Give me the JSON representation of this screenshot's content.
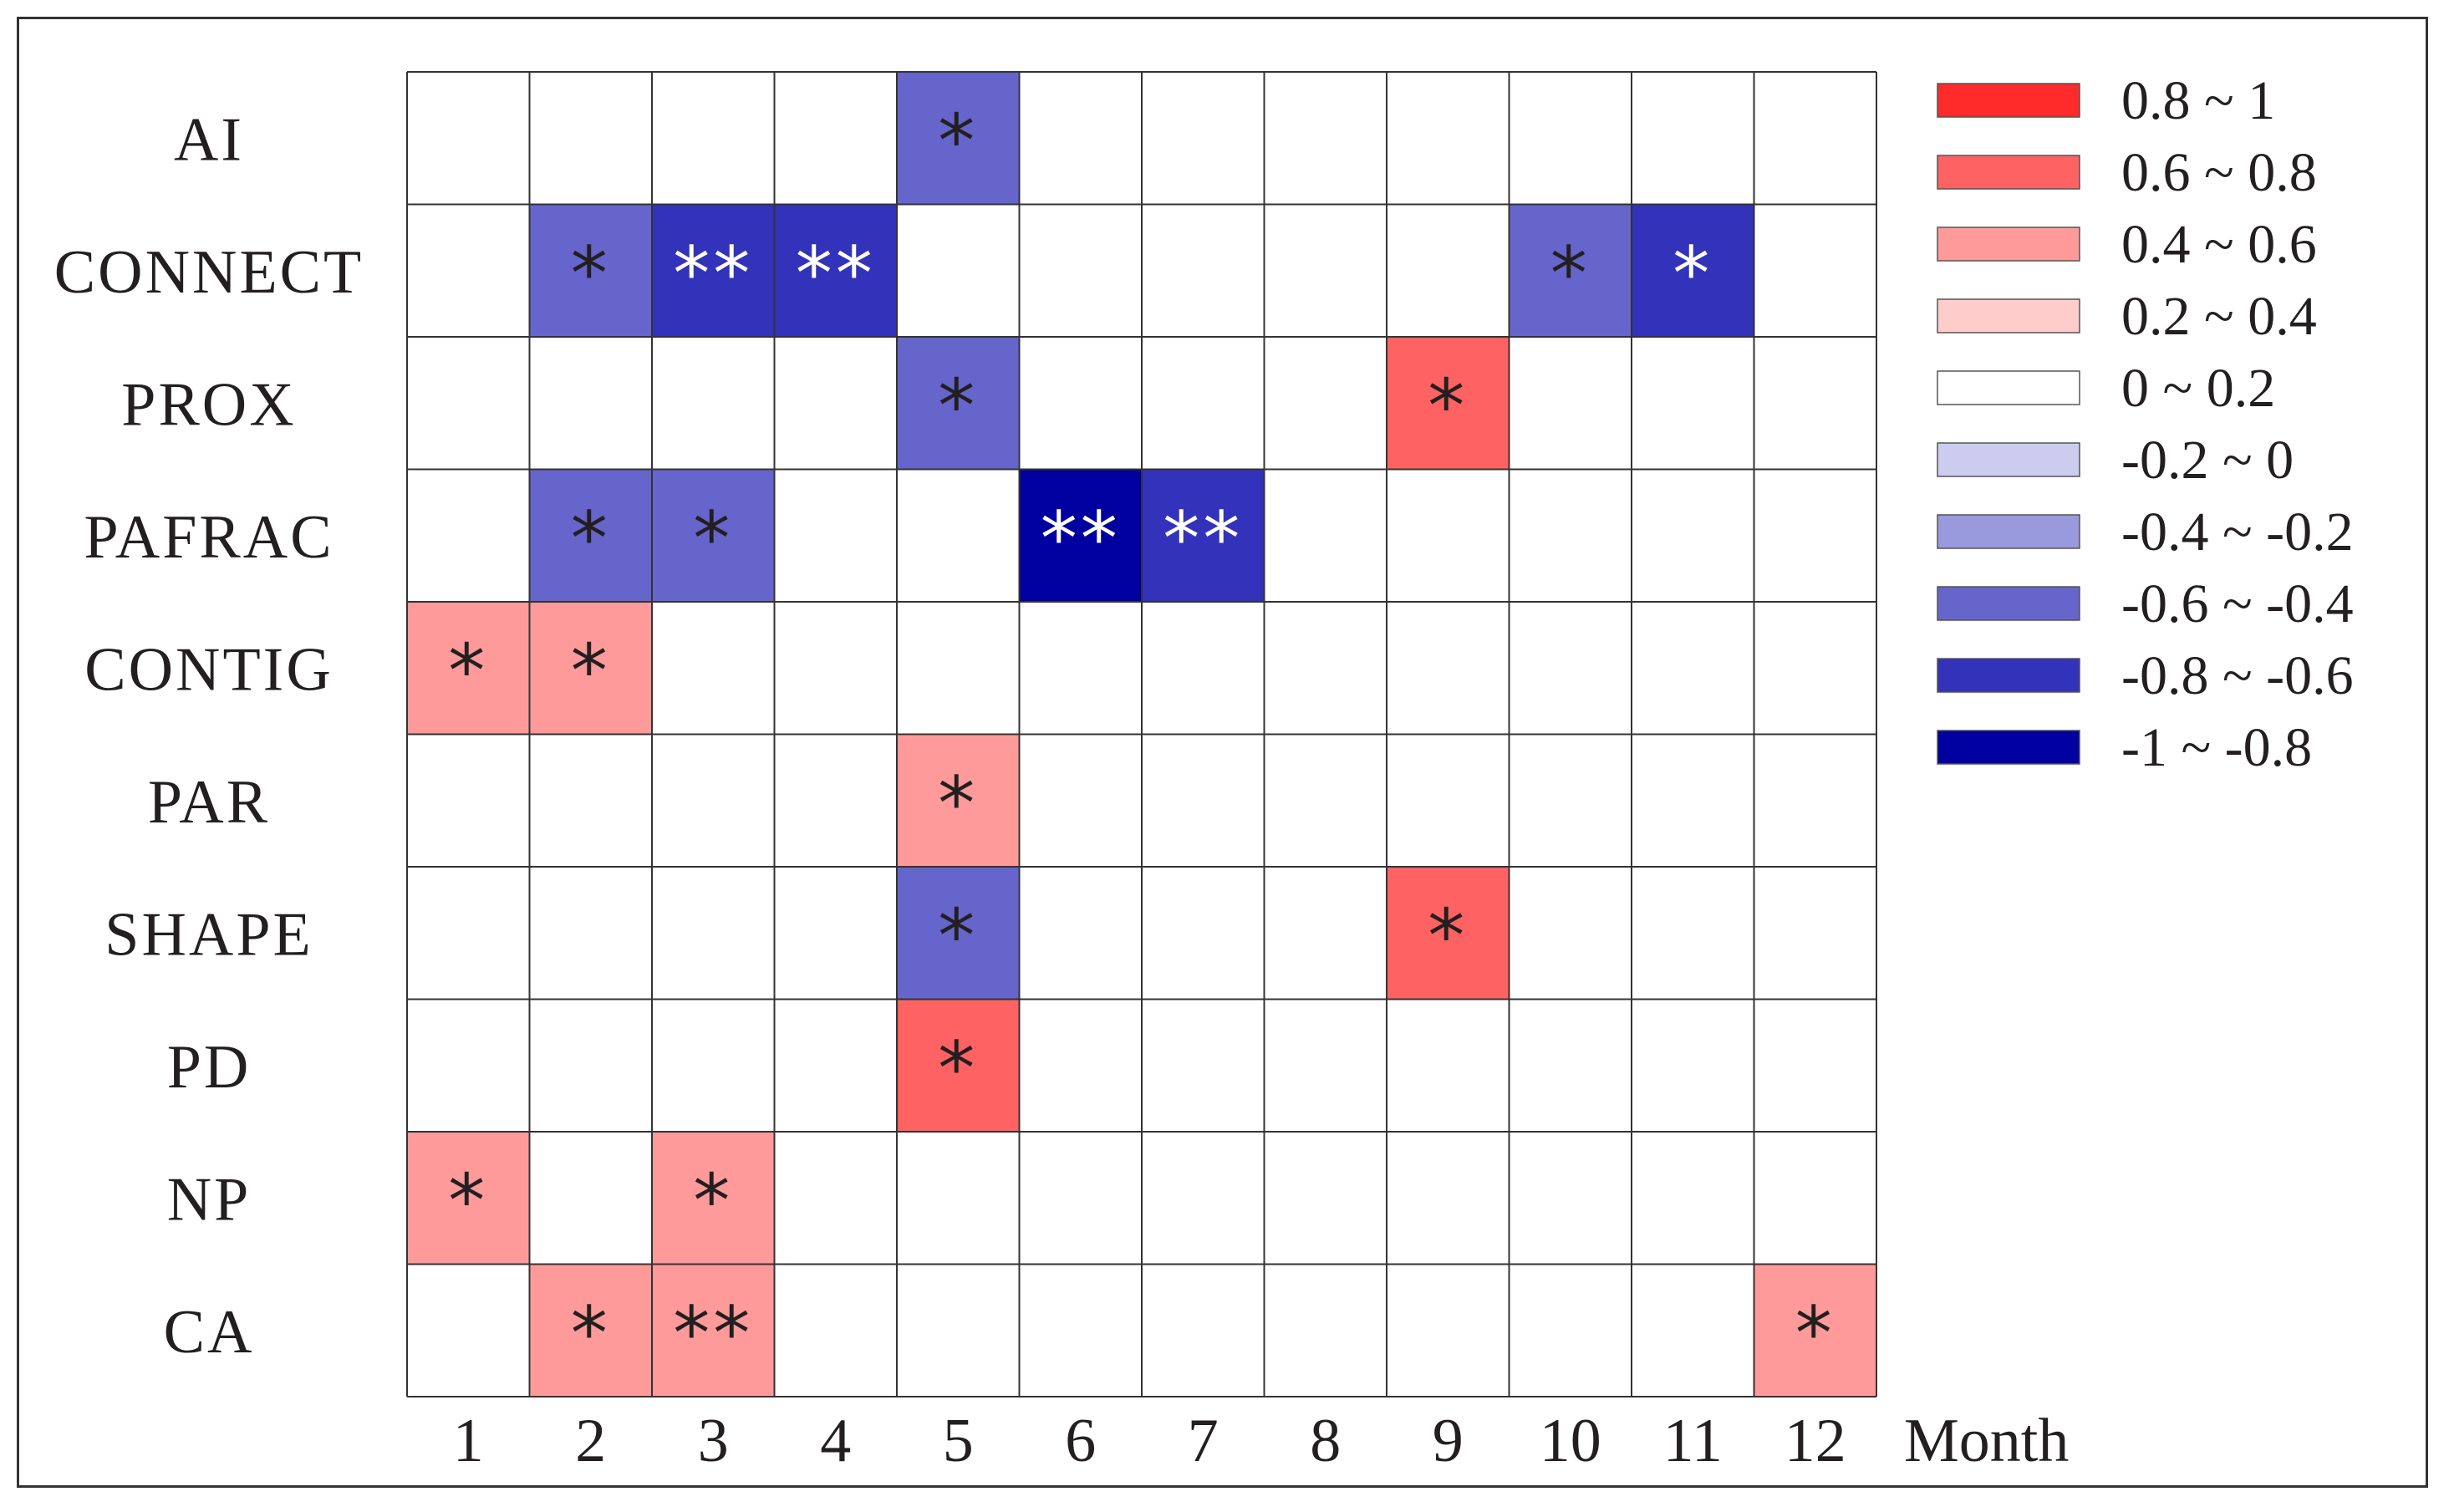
{
  "chart_data": {
    "type": "heatmap",
    "title": "",
    "xlabel": "Month",
    "ylabel": "",
    "x_categories": [
      "1",
      "2",
      "3",
      "4",
      "5",
      "6",
      "7",
      "8",
      "9",
      "10",
      "11",
      "12"
    ],
    "y_categories": [
      "AI",
      "CONNECT",
      "PROX",
      "PAFRAC",
      "CONTIG",
      "PAR",
      "SHAPE",
      "PD",
      "NP",
      "CA"
    ],
    "legend": {
      "placement": "right",
      "bins": [
        {
          "label": "0.8 ~ 1",
          "color": "#ff2a2a"
        },
        {
          "label": "0.6 ~ 0.8",
          "color": "#ff6262"
        },
        {
          "label": "0.4 ~ 0.6",
          "color": "#ff9a9a"
        },
        {
          "label": "0.2 ~ 0.4",
          "color": "#ffcccc"
        },
        {
          "label": "0 ~ 0.2",
          "color": "#ffffff"
        },
        {
          "label": "-0.2 ~ 0",
          "color": "#ccccee"
        },
        {
          "label": "-0.4 ~ -0.2",
          "color": "#9999dd"
        },
        {
          "label": "-0.6 ~ -0.4",
          "color": "#6565cc"
        },
        {
          "label": "-0.8 ~ -0.6",
          "color": "#3232bb"
        },
        {
          "label": "-1 ~ -0.8",
          "color": "#0000a0"
        }
      ]
    },
    "cells": [
      {
        "row": "AI",
        "month": "5",
        "bin": "-0.6 ~ -0.4",
        "significance": "*"
      },
      {
        "row": "CONNECT",
        "month": "2",
        "bin": "-0.6 ~ -0.4",
        "significance": "*"
      },
      {
        "row": "CONNECT",
        "month": "3",
        "bin": "-0.8 ~ -0.6",
        "significance": "**"
      },
      {
        "row": "CONNECT",
        "month": "4",
        "bin": "-0.8 ~ -0.6",
        "significance": "**"
      },
      {
        "row": "CONNECT",
        "month": "10",
        "bin": "-0.6 ~ -0.4",
        "significance": "*"
      },
      {
        "row": "CONNECT",
        "month": "11",
        "bin": "-0.8 ~ -0.6",
        "significance": "*"
      },
      {
        "row": "PROX",
        "month": "5",
        "bin": "-0.6 ~ -0.4",
        "significance": "*"
      },
      {
        "row": "PROX",
        "month": "9",
        "bin": "0.6 ~ 0.8",
        "significance": "*"
      },
      {
        "row": "PAFRAC",
        "month": "2",
        "bin": "-0.6 ~ -0.4",
        "significance": "*"
      },
      {
        "row": "PAFRAC",
        "month": "3",
        "bin": "-0.6 ~ -0.4",
        "significance": "*"
      },
      {
        "row": "PAFRAC",
        "month": "6",
        "bin": "-1 ~ -0.8",
        "significance": "**"
      },
      {
        "row": "PAFRAC",
        "month": "7",
        "bin": "-0.8 ~ -0.6",
        "significance": "**"
      },
      {
        "row": "CONTIG",
        "month": "1",
        "bin": "0.4 ~ 0.6",
        "significance": "*"
      },
      {
        "row": "CONTIG",
        "month": "2",
        "bin": "0.4 ~ 0.6",
        "significance": "*"
      },
      {
        "row": "PAR",
        "month": "5",
        "bin": "0.4 ~ 0.6",
        "significance": "*"
      },
      {
        "row": "SHAPE",
        "month": "5",
        "bin": "-0.6 ~ -0.4",
        "significance": "*"
      },
      {
        "row": "SHAPE",
        "month": "9",
        "bin": "0.6 ~ 0.8",
        "significance": "*"
      },
      {
        "row": "PD",
        "month": "5",
        "bin": "0.6 ~ 0.8",
        "significance": "*"
      },
      {
        "row": "NP",
        "month": "1",
        "bin": "0.4 ~ 0.6",
        "significance": "*"
      },
      {
        "row": "NP",
        "month": "3",
        "bin": "0.4 ~ 0.6",
        "significance": "*"
      },
      {
        "row": "CA",
        "month": "2",
        "bin": "0.4 ~ 0.6",
        "significance": "*"
      },
      {
        "row": "CA",
        "month": "3",
        "bin": "0.4 ~ 0.6",
        "significance": "**"
      },
      {
        "row": "CA",
        "month": "12",
        "bin": "0.4 ~ 0.6",
        "significance": "*"
      }
    ],
    "default_bin": "0 ~ 0.2",
    "grid": true,
    "star_color_on_dark": "#ffffff",
    "star_color_default": "#231f20"
  }
}
